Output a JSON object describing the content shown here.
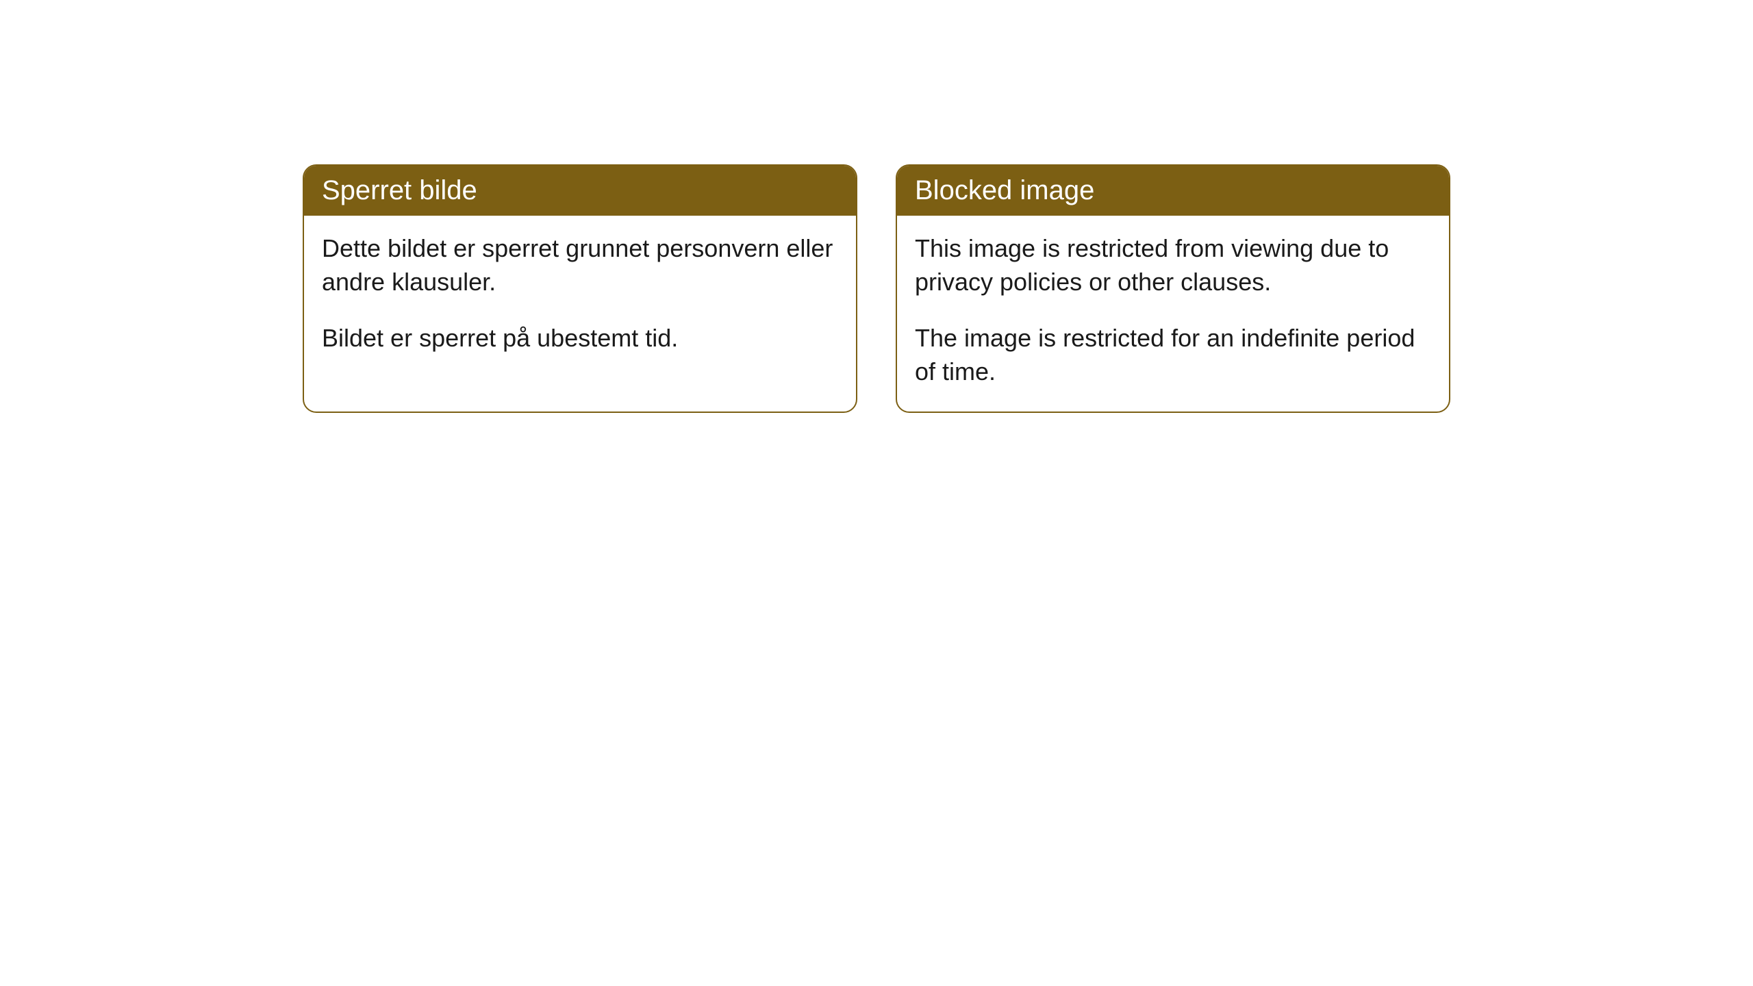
{
  "cards": [
    {
      "title": "Sperret bilde",
      "paragraph1": "Dette bildet er sperret grunnet personvern eller andre klausuler.",
      "paragraph2": "Bildet er sperret på ubestemt tid."
    },
    {
      "title": "Blocked image",
      "paragraph1": "This image is restricted from viewing due to privacy policies or other clauses.",
      "paragraph2": "The image is restricted for an indefinite period of time."
    }
  ],
  "style": {
    "header_background": "#7c5f13",
    "header_text_color": "#ffffff",
    "border_color": "#7c5f13",
    "body_background": "#ffffff",
    "body_text_color": "#1a1a1a",
    "border_radius": 20,
    "title_fontsize": 40,
    "body_fontsize": 36
  }
}
